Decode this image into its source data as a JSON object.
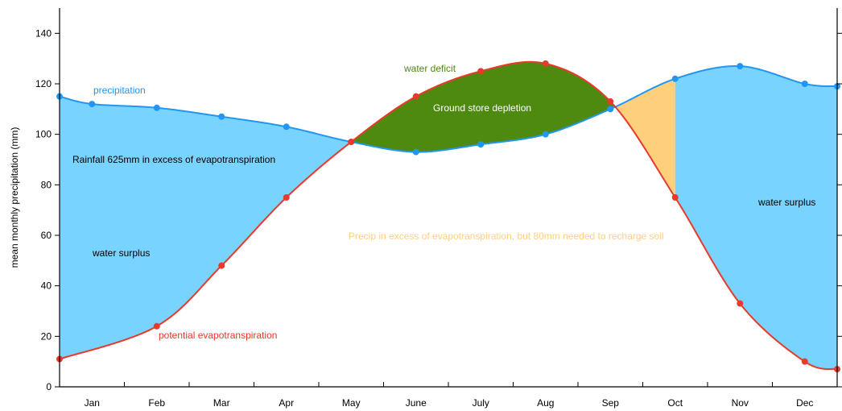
{
  "chart_data": {
    "type": "line",
    "title": "",
    "xlabel": "",
    "ylabel": "mean monthly precipitation (mm)",
    "ylim": [
      0,
      150
    ],
    "yticks": [
      0,
      20,
      40,
      60,
      80,
      100,
      120,
      140
    ],
    "grid": false,
    "categories": [
      "Jan",
      "Feb",
      "Mar",
      "Apr",
      "May",
      "June",
      "July",
      "Aug",
      "Sep",
      "Oct",
      "Nov",
      "Dec"
    ],
    "series": [
      {
        "name": "precipitation",
        "color": "#2196f3",
        "x": [
          0,
          0.5,
          1.5,
          2.5,
          3.5,
          4.5,
          5.5,
          6.5,
          7.5,
          8.5,
          9.5,
          10.5,
          11.5,
          12.0
        ],
        "y": [
          115,
          112,
          110.5,
          107,
          103,
          97,
          93,
          96,
          100,
          110,
          122,
          127,
          120,
          119
        ]
      },
      {
        "name": "potential evapotranspiration",
        "color": "#e8392a",
        "x": [
          0,
          1.5,
          2.5,
          3.5,
          4.5,
          5.5,
          6.5,
          7.5,
          8.5,
          9.5,
          10.5,
          11.5,
          12.0
        ],
        "y": [
          11,
          24,
          48,
          75,
          97,
          115,
          125,
          128,
          113,
          75,
          33,
          10,
          7
        ]
      }
    ],
    "fill_colors": {
      "surplus": "#79d3ff",
      "deficit": "#4e8a10",
      "recharge": "#ffd07c"
    },
    "annotations": {
      "precipitation_label": "precipitation",
      "pet_label": "potential evapotranspiration",
      "rainfall_excess": "Rainfall 625mm in excess of evapotranspiration",
      "water_surplus_left": "water surplus",
      "water_surplus_right": "water surplus",
      "water_deficit": "water deficit",
      "ground_store": "Ground store depletion",
      "recharge": "Precip in excess of evapotranspiration, but 80mm needed to recharge soil"
    }
  }
}
